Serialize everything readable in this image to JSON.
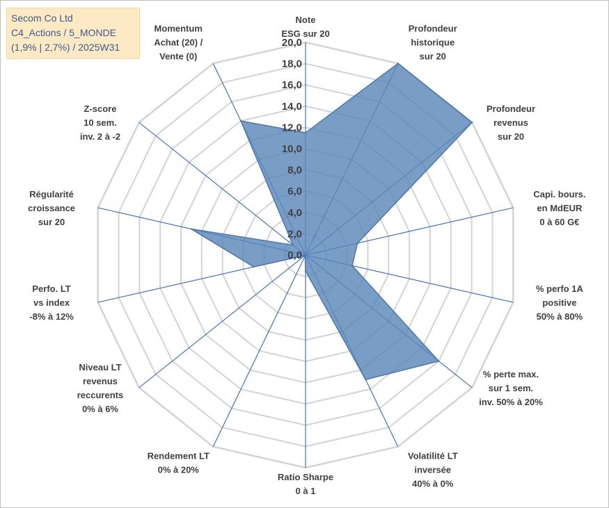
{
  "title": {
    "lines": [
      "Secom Co Ltd",
      "C4_Actions / 5_MONDE",
      "(1,9% | 2,7%) / 2025W31"
    ]
  },
  "colors": {
    "fill": "#5b87b8",
    "stroke": "#4a77ab",
    "grid": "#d3d3d3",
    "spoke": "#4472c4",
    "title_bg": "#fde9c4",
    "title_text": "#3a5c8c"
  },
  "chart_data": {
    "type": "radar",
    "scale": {
      "min": 0,
      "max": 20,
      "step": 2
    },
    "tick_labels": [
      "0,0",
      "2,0",
      "4,0",
      "6,0",
      "8,0",
      "10,0",
      "12,0",
      "14,0",
      "16,0",
      "18,0",
      "20,0"
    ],
    "axes": [
      {
        "label": [
          "Note",
          "ESG sur 20"
        ]
      },
      {
        "label": [
          "Profondeur",
          "historique",
          "sur 20"
        ]
      },
      {
        "label": [
          "Profondeur",
          "revenus",
          "sur 20"
        ]
      },
      {
        "label": [
          "Capi. bours.",
          "en MdEUR",
          "0 à 60 G€"
        ]
      },
      {
        "label": [
          "% perfo 1A",
          "positive",
          "50% à 80%"
        ]
      },
      {
        "label": [
          "% perte max.",
          "sur 1 sem.",
          "inv. 50% à 20%"
        ]
      },
      {
        "label": [
          "Volatilité LT",
          "inversée",
          "40% à 0%"
        ]
      },
      {
        "label": [
          "Ratio Sharpe",
          "0 à 1"
        ]
      },
      {
        "label": [
          "Rendement LT",
          "0% à 20%"
        ]
      },
      {
        "label": [
          "Niveau LT",
          "revenus",
          "reccurents",
          "0% à 6%"
        ]
      },
      {
        "label": [
          "Perfo. LT",
          "vs index",
          "-8% à 12%"
        ]
      },
      {
        "label": [
          "Régularité",
          "croissance",
          "sur 20"
        ]
      },
      {
        "label": [
          "Z-score",
          "10 sem.",
          "inv. 2 à -2"
        ]
      },
      {
        "label": [
          "Momentum",
          "Achat (20) /",
          "Vente (0)"
        ]
      }
    ],
    "series": [
      {
        "values": [
          11.5,
          20,
          20,
          5,
          4.5,
          16,
          13,
          1.5,
          0.1,
          0.1,
          5,
          11,
          1.5,
          14
        ]
      }
    ]
  }
}
